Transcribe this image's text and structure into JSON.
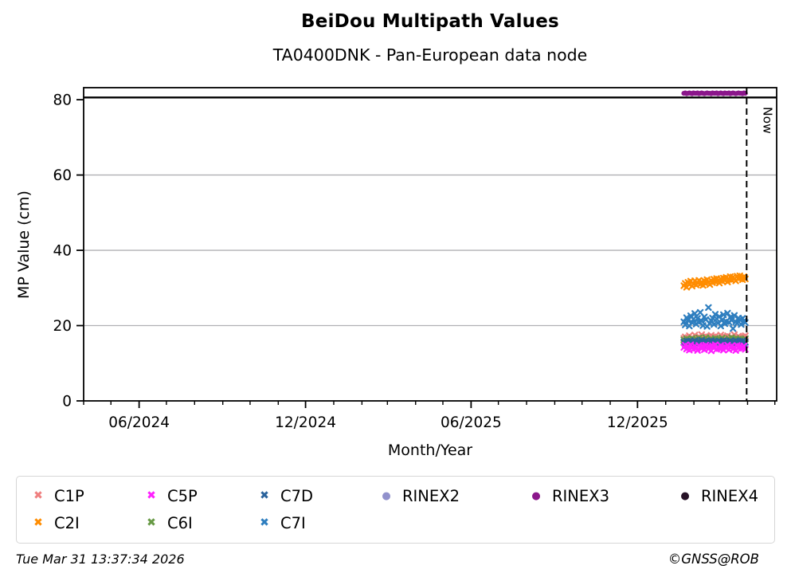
{
  "footer": {
    "timestamp": "Tue Mar 31 13:37:34 2026",
    "credit": "©GNSS@ROB"
  },
  "chart_data": {
    "type": "scatter",
    "title": "BeiDou Multipath Values",
    "subtitle": "TA0400DNK - Pan-European data node",
    "xlabel": "Month/Year",
    "ylabel": "MP Value (cm)",
    "ylim": [
      0,
      83.2
    ],
    "grid": "horizontal-only",
    "grid_color": "#b0b0b4",
    "gridlines_y": [
      20,
      40,
      60
    ],
    "limit_line": {
      "y": 80.6,
      "color": "#000000"
    },
    "y_ticks": [
      {
        "value": 0,
        "label": "0"
      },
      {
        "value": 20,
        "label": "20"
      },
      {
        "value": 40,
        "label": "40"
      },
      {
        "value": 60,
        "label": "60"
      },
      {
        "value": 80,
        "label": "80"
      }
    ],
    "x_axis": {
      "unit": "days since 2024-04-01",
      "range": [
        0,
        762
      ],
      "major_ticks": [
        {
          "day": 61,
          "label": "06/2024"
        },
        {
          "day": 244,
          "label": "12/2024"
        },
        {
          "day": 426,
          "label": "06/2025"
        },
        {
          "day": 609,
          "label": "12/2025"
        }
      ],
      "minor_tick_days": [
        0,
        30,
        91,
        122,
        153,
        183,
        214,
        275,
        306,
        334,
        365,
        395,
        456,
        487,
        518,
        548,
        579,
        640,
        671,
        699,
        730,
        760
      ]
    },
    "now_marker": {
      "day": 729,
      "label": "Now"
    },
    "days": [
      660,
      661.5,
      663,
      664.5,
      666,
      667.5,
      669,
      670.5,
      672,
      673.5,
      675,
      676.5,
      678,
      679.5,
      681,
      682.5,
      684,
      685.5,
      687,
      688.5,
      690,
      691.5,
      693,
      694.5,
      696,
      697.5,
      699,
      700.5,
      702,
      703.5,
      705,
      706.5,
      708,
      709.5,
      711,
      712.5,
      714,
      715.5,
      717,
      718.5,
      720,
      721.5,
      723,
      724.5,
      726,
      727.5
    ],
    "series": [
      {
        "name": "RINEX2",
        "marker": "dot",
        "color": "#9191cc",
        "values": [
          15.7,
          15.5,
          15.8,
          15.4,
          15.6,
          15.9,
          15.3,
          15.7,
          15.5,
          15.8,
          15.6,
          15.4,
          15.9,
          15.5,
          15.7,
          15.3,
          15.8,
          15.6,
          15.4,
          15.7,
          15.9,
          15.5,
          15.6,
          15.8,
          15.4,
          15.7,
          15.5,
          15.9,
          15.6,
          15.3,
          15.8,
          15.5,
          15.7,
          15.4,
          15.6,
          15.9,
          15.5,
          15.8,
          15.3,
          15.6,
          15.7,
          15.4,
          15.8,
          15.5,
          15.6,
          15.9
        ]
      },
      {
        "name": "C1P",
        "marker": "x",
        "color": "#ef7f7f",
        "values": [
          16.6,
          17.0,
          16.2,
          16.8,
          17.3,
          16.4,
          16.9,
          16.1,
          17.5,
          16.7,
          16.3,
          17.1,
          16.5,
          17.6,
          16.8,
          16.2,
          17.2,
          16.6,
          17.0,
          16.4,
          17.4,
          16.8,
          16.1,
          17.2,
          16.5,
          17.0,
          16.3,
          17.5,
          16.9,
          16.4,
          17.1,
          16.6,
          17.3,
          16.2,
          16.8,
          17.0,
          16.5,
          17.6,
          16.7,
          16.3,
          17.2,
          16.9,
          16.4,
          17.0,
          16.6,
          17.3
        ]
      },
      {
        "name": "C6I",
        "marker": "x",
        "color": "#669944",
        "values": [
          16.2,
          15.8,
          16.5,
          15.9,
          16.3,
          15.7,
          16.6,
          16.0,
          15.6,
          16.4,
          15.9,
          16.7,
          16.1,
          15.7,
          16.3,
          16.0,
          16.8,
          15.8,
          16.2,
          15.6,
          16.5,
          16.1,
          15.9,
          16.6,
          16.0,
          16.4,
          15.7,
          16.2,
          16.7,
          15.9,
          16.3,
          16.0,
          15.6,
          16.5,
          16.1,
          16.8,
          15.8,
          16.2,
          16.6,
          15.9,
          16.4,
          16.0,
          16.3,
          15.7,
          16.1,
          16.5
        ]
      },
      {
        "name": "C7D",
        "marker": "x",
        "color": "#2a639c",
        "values": [
          15.6,
          15.2,
          15.9,
          15.4,
          15.8,
          15.1,
          15.7,
          15.3,
          16.0,
          15.5,
          15.2,
          15.8,
          15.4,
          16.1,
          15.0,
          15.6,
          15.9,
          15.3,
          15.7,
          15.2,
          16.0,
          15.5,
          15.8,
          15.1,
          15.6,
          15.4,
          15.9,
          15.2,
          15.7,
          16.0,
          15.3,
          15.8,
          15.5,
          15.1,
          15.9,
          15.4,
          15.7,
          15.2,
          16.0,
          15.6,
          15.3,
          15.8,
          15.5,
          15.9,
          15.2,
          15.6
        ]
      },
      {
        "name": "C5P",
        "marker": "x",
        "color": "#ff20ff",
        "values": [
          14.2,
          14.8,
          13.8,
          14.5,
          13.5,
          14.9,
          14.1,
          13.7,
          14.6,
          14.0,
          13.4,
          14.7,
          14.3,
          13.9,
          14.5,
          13.6,
          14.8,
          14.2,
          13.8,
          14.4,
          13.3,
          14.6,
          14.0,
          14.9,
          13.7,
          14.3,
          13.9,
          14.7,
          14.1,
          13.5,
          14.4,
          14.0,
          14.8,
          13.6,
          14.2,
          14.6,
          13.8,
          14.3,
          13.4,
          14.7,
          14.0,
          14.5,
          13.9,
          14.2,
          14.6,
          13.7
        ]
      },
      {
        "name": "C7I",
        "marker": "x",
        "color": "#2e7ebf",
        "values": [
          21.0,
          20.2,
          22.1,
          21.4,
          19.9,
          22.6,
          20.8,
          21.7,
          23.2,
          20.4,
          21.9,
          20.9,
          23.5,
          21.2,
          20.0,
          22.3,
          21.6,
          19.8,
          24.8,
          20.6,
          21.3,
          22.0,
          20.3,
          23.0,
          21.8,
          20.7,
          22.4,
          19.9,
          21.5,
          22.9,
          20.5,
          21.1,
          23.3,
          20.9,
          22.2,
          21.4,
          19.2,
          22.7,
          21.0,
          20.6,
          22.0,
          21.6,
          20.3,
          21.9,
          21.2,
          20.8
        ]
      },
      {
        "name": "C2I",
        "marker": "x",
        "color": "#ff8c00",
        "values": [
          30.6,
          31.2,
          30.2,
          31.5,
          30.9,
          31.8,
          30.5,
          31.1,
          31.9,
          30.8,
          31.4,
          32.0,
          31.0,
          31.6,
          30.7,
          31.9,
          31.2,
          32.2,
          31.5,
          30.9,
          32.0,
          31.4,
          32.3,
          31.7,
          32.5,
          31.9,
          31.3,
          32.4,
          31.8,
          32.6,
          32.0,
          32.8,
          31.6,
          32.3,
          33.0,
          32.1,
          32.9,
          32.4,
          31.9,
          33.1,
          32.5,
          33.2,
          32.7,
          32.2,
          33.0,
          32.4
        ]
      },
      {
        "name": "RINEX3",
        "marker": "dot",
        "color": "#8b178b",
        "values": [
          81.7,
          81.8,
          81.6,
          81.7,
          81.8,
          81.7,
          81.6,
          81.8,
          81.7,
          81.7,
          81.8,
          81.6,
          81.7,
          81.8,
          81.7,
          81.6,
          81.7,
          81.8,
          81.7,
          81.7,
          81.6,
          81.8,
          81.7,
          81.7,
          81.8,
          81.6,
          81.7,
          81.8,
          81.7,
          81.6,
          81.8,
          81.7,
          81.7,
          81.8,
          81.6,
          81.7,
          81.8,
          81.7,
          81.6,
          81.7,
          81.8,
          81.7,
          81.7,
          81.6,
          81.8,
          81.7
        ]
      }
    ],
    "legend": [
      {
        "label": "C1P",
        "marker": "x",
        "color": "#ef7f7f"
      },
      {
        "label": "C5P",
        "marker": "x",
        "color": "#ff20ff"
      },
      {
        "label": "C7D",
        "marker": "x",
        "color": "#2a639c"
      },
      {
        "label": "RINEX2",
        "marker": "dot",
        "color": "#9191cc"
      },
      {
        "label": "RINEX3",
        "marker": "dot",
        "color": "#8b178b"
      },
      {
        "label": "RINEX4",
        "marker": "dot",
        "color": "#261226"
      },
      {
        "label": "C2I",
        "marker": "x",
        "color": "#ff8c00"
      },
      {
        "label": "C6I",
        "marker": "x",
        "color": "#669944"
      },
      {
        "label": "C7I",
        "marker": "x",
        "color": "#2e7ebf"
      }
    ]
  }
}
